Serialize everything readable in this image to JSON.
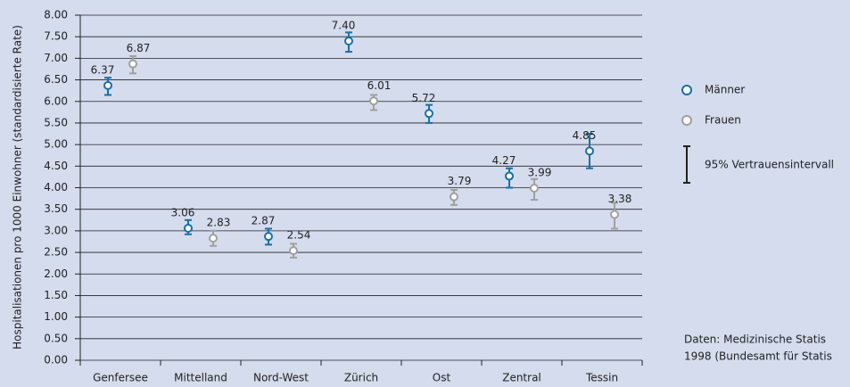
{
  "chart_data": {
    "type": "errorbar",
    "y_label": "Hospitalisationen pro 1000 Einwohner (standardisierte Rate)",
    "categories": [
      "Genfersee",
      "Mittelland",
      "Nord-West",
      "Zürich",
      "Ost",
      "Zentral",
      "Tessin"
    ],
    "series": [
      {
        "name": "Männer",
        "color": "#1a6fa8",
        "values": [
          6.37,
          3.06,
          2.87,
          7.4,
          5.72,
          4.27,
          4.85
        ],
        "value_labels": [
          "6.37",
          "3.06",
          "2.87",
          "7.40",
          "5.72",
          "4.27",
          "4.85"
        ],
        "ci_low": [
          6.15,
          2.92,
          2.68,
          7.15,
          5.5,
          4.0,
          4.45
        ],
        "ci_high": [
          6.55,
          3.25,
          3.05,
          7.6,
          5.92,
          4.45,
          5.25
        ]
      },
      {
        "name": "Frauen",
        "color": "#a0a0a0",
        "values": [
          6.87,
          2.83,
          2.54,
          6.01,
          3.79,
          3.99,
          3.38
        ],
        "value_labels": [
          "6.87",
          "2.83",
          "2.54",
          "6.01",
          "3.79",
          "3.99",
          "3.38"
        ],
        "ci_low": [
          6.65,
          2.65,
          2.38,
          5.8,
          3.6,
          3.72,
          3.05
        ],
        "ci_high": [
          7.05,
          3.0,
          2.7,
          6.15,
          3.95,
          4.2,
          3.65
        ]
      }
    ],
    "ci_legend": "95% Vertrauensintervall",
    "source": [
      "Daten: Medizinische Statis",
      "1998 (Bundesamt für Statis"
    ],
    "ylim": [
      0,
      8
    ],
    "yticks": [
      {
        "value": 0,
        "label": "0.00"
      },
      {
        "value": 0.5,
        "label": "0.50"
      },
      {
        "value": 1,
        "label": "1.00"
      },
      {
        "value": 1.5,
        "label": "1.50"
      },
      {
        "value": 2,
        "label": "2.00"
      },
      {
        "value": 2.5,
        "label": "2.50"
      },
      {
        "value": 3,
        "label": "3.00"
      },
      {
        "value": 3.5,
        "label": "3.50"
      },
      {
        "value": 4,
        "label": "4.00"
      },
      {
        "value": 4.5,
        "label": "4.50"
      },
      {
        "value": 5,
        "label": "5.00"
      },
      {
        "value": 5.5,
        "label": "5.50"
      },
      {
        "value": 6,
        "label": "6.00"
      },
      {
        "value": 6.5,
        "label": "6.50"
      },
      {
        "value": 7,
        "label": "7.00"
      },
      {
        "value": 7.5,
        "label": "7.50"
      },
      {
        "value": 8,
        "label": "8.00"
      }
    ],
    "grid": true
  }
}
